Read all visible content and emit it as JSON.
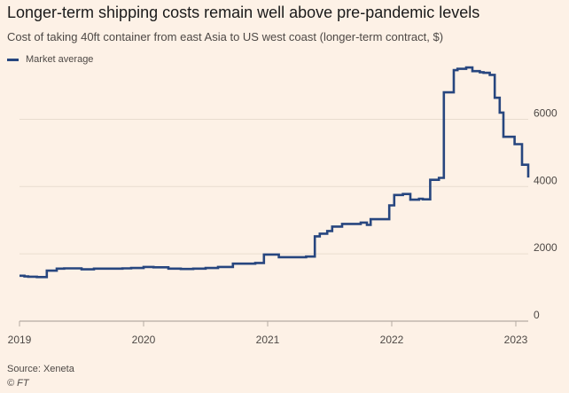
{
  "title": "Longer-term shipping costs remain well above pre-pandemic levels",
  "subtitle": "Cost of taking 40ft container from east Asia to US west coast (longer-term contract, $)",
  "legend": {
    "label": "Market average",
    "color": "#27467f"
  },
  "source": "Source: Xeneta",
  "credit": "© FT",
  "colors": {
    "background": "#fdf1e6",
    "grid": "#e8dccf",
    "line": "#27467f"
  },
  "chart_data": {
    "type": "line",
    "step": true,
    "title": "Longer-term shipping costs remain well above pre-pandemic levels",
    "subtitle": "Cost of taking 40ft container from east Asia to US west coast (longer-term contract, $)",
    "xlim": [
      2019.0,
      2023.1
    ],
    "ylim": [
      0,
      7700
    ],
    "yticks": [
      0,
      2000,
      4000,
      6000
    ],
    "ytick_labels": [
      "0",
      "2000",
      "4000",
      "6000"
    ],
    "xticks": [
      2019,
      2020,
      2021,
      2022,
      2023
    ],
    "xtick_labels": [
      "2019",
      "2020",
      "2021",
      "2022",
      "2023"
    ],
    "y_axis_position": "right",
    "grid": true,
    "legend_position": "top-left",
    "series": [
      {
        "name": "Market average",
        "color": "#27467f",
        "x": [
          2019.0,
          2019.04,
          2019.07,
          2019.14,
          2019.22,
          2019.3,
          2019.36,
          2019.5,
          2019.6,
          2019.75,
          2019.83,
          2019.9,
          2020.0,
          2020.08,
          2020.2,
          2020.3,
          2020.4,
          2020.5,
          2020.6,
          2020.72,
          2020.8,
          2020.9,
          2020.97,
          2021.0,
          2021.09,
          2021.28,
          2021.31,
          2021.38,
          2021.42,
          2021.48,
          2021.52,
          2021.6,
          2021.75,
          2021.8,
          2021.83,
          2021.98,
          2022.02,
          2022.09,
          2022.15,
          2022.22,
          2022.25,
          2022.31,
          2022.38,
          2022.42,
          2022.5,
          2022.53,
          2022.6,
          2022.65,
          2022.71,
          2022.74,
          2022.79,
          2022.83,
          2022.87,
          2022.9,
          2022.99,
          2023.05,
          2023.1
        ],
        "y": [
          1350,
          1330,
          1320,
          1310,
          1500,
          1560,
          1570,
          1540,
          1560,
          1560,
          1570,
          1580,
          1610,
          1600,
          1560,
          1550,
          1560,
          1580,
          1610,
          1710,
          1710,
          1730,
          1980,
          1980,
          1900,
          1900,
          1920,
          2520,
          2600,
          2680,
          2810,
          2890,
          2930,
          2860,
          3030,
          3440,
          3750,
          3780,
          3610,
          3640,
          3620,
          4200,
          4260,
          6800,
          7460,
          7500,
          7540,
          7430,
          7400,
          7380,
          7320,
          6640,
          6200,
          5480,
          5260,
          4650,
          4270
        ]
      }
    ]
  }
}
